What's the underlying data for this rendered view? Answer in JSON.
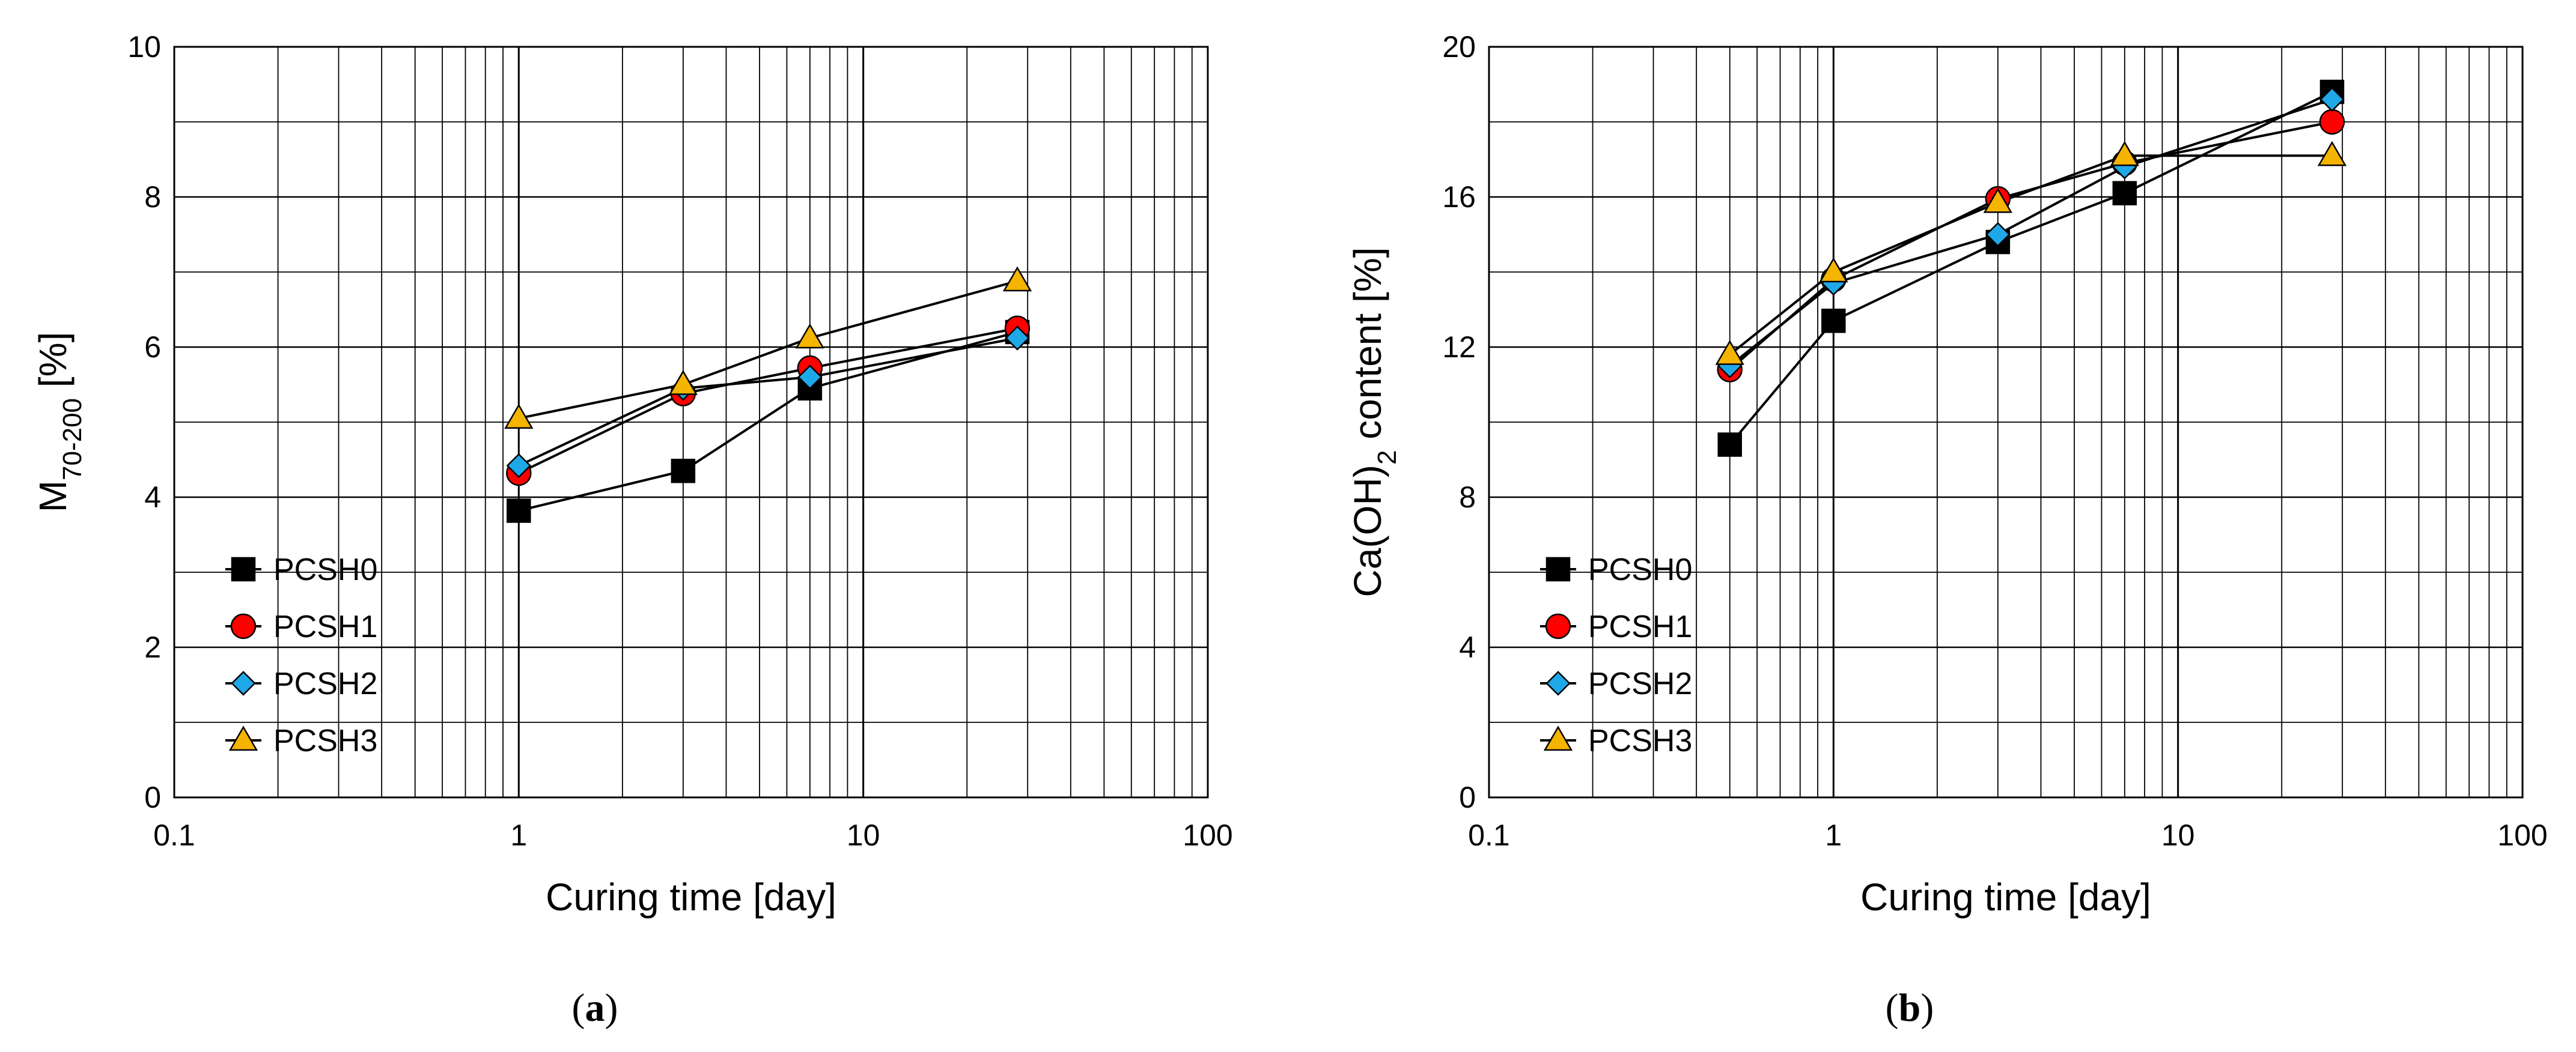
{
  "chart_data": [
    {
      "type": "line",
      "panel_label": "(a)",
      "panel_letter": "a",
      "x_scale": "log",
      "xlim": [
        0.1,
        100
      ],
      "ylim": [
        0,
        10
      ],
      "xticks": [
        0.1,
        1,
        10,
        100
      ],
      "xtick_labels": [
        "0.1",
        "1",
        "10",
        "100"
      ],
      "yticks": [
        0,
        2,
        4,
        6,
        8,
        10
      ],
      "ytick_labels": [
        "0",
        "2",
        "4",
        "6",
        "8",
        "10"
      ],
      "xlabel": "Curing time [day]",
      "ylabel": {
        "main": "M",
        "sub": "70-200",
        "tail": " [%]"
      },
      "grid": true,
      "legend_position": "bottom-left",
      "series": [
        {
          "name": "PCSH0",
          "marker": "square",
          "color": "#000000",
          "x": [
            1,
            3,
            7,
            28
          ],
          "values": [
            3.82,
            4.35,
            5.45,
            6.2
          ]
        },
        {
          "name": "PCSH1",
          "marker": "circle",
          "color": "#ff0000",
          "x": [
            1,
            3,
            7,
            28
          ],
          "values": [
            4.32,
            5.38,
            5.72,
            6.25
          ]
        },
        {
          "name": "PCSH2",
          "marker": "diamond",
          "color": "#1fa8e8",
          "x": [
            1,
            3,
            7,
            28
          ],
          "values": [
            4.42,
            5.45,
            5.6,
            6.12
          ]
        },
        {
          "name": "PCSH3",
          "marker": "triangle",
          "color": "#f5b400",
          "x": [
            1,
            3,
            7,
            28
          ],
          "values": [
            5.05,
            5.5,
            6.12,
            6.88
          ]
        }
      ]
    },
    {
      "type": "line",
      "panel_label": "(b)",
      "panel_letter": "b",
      "x_scale": "log",
      "xlim": [
        0.1,
        100
      ],
      "ylim": [
        0,
        20
      ],
      "xticks": [
        0.1,
        1,
        10,
        100
      ],
      "xtick_labels": [
        "0.1",
        "1",
        "10",
        "100"
      ],
      "yticks": [
        0,
        4,
        8,
        12,
        16,
        20
      ],
      "ytick_labels": [
        "0",
        "4",
        "8",
        "12",
        "16",
        "20"
      ],
      "xlabel": "Curing time [day]",
      "ylabel": {
        "main": "Ca(OH)",
        "sub": "2",
        "tail": " content [%]"
      },
      "grid": true,
      "legend_position": "bottom-left",
      "series": [
        {
          "name": "PCSH0",
          "marker": "square",
          "color": "#000000",
          "x": [
            0.5,
            1,
            3,
            7,
            28
          ],
          "values": [
            9.4,
            12.7,
            14.8,
            16.1,
            18.8
          ]
        },
        {
          "name": "PCSH1",
          "marker": "circle",
          "color": "#ff0000",
          "x": [
            0.5,
            1,
            3,
            7,
            28
          ],
          "values": [
            11.4,
            13.8,
            15.95,
            16.9,
            18.0
          ]
        },
        {
          "name": "PCSH2",
          "marker": "diamond",
          "color": "#1fa8e8",
          "x": [
            0.5,
            1,
            3,
            7,
            28
          ],
          "values": [
            11.5,
            13.7,
            15.0,
            16.8,
            18.6
          ]
        },
        {
          "name": "PCSH3",
          "marker": "triangle",
          "color": "#f5b400",
          "x": [
            0.5,
            1,
            3,
            7,
            28
          ],
          "values": [
            11.8,
            14.0,
            15.85,
            17.1,
            17.1
          ]
        }
      ]
    }
  ]
}
